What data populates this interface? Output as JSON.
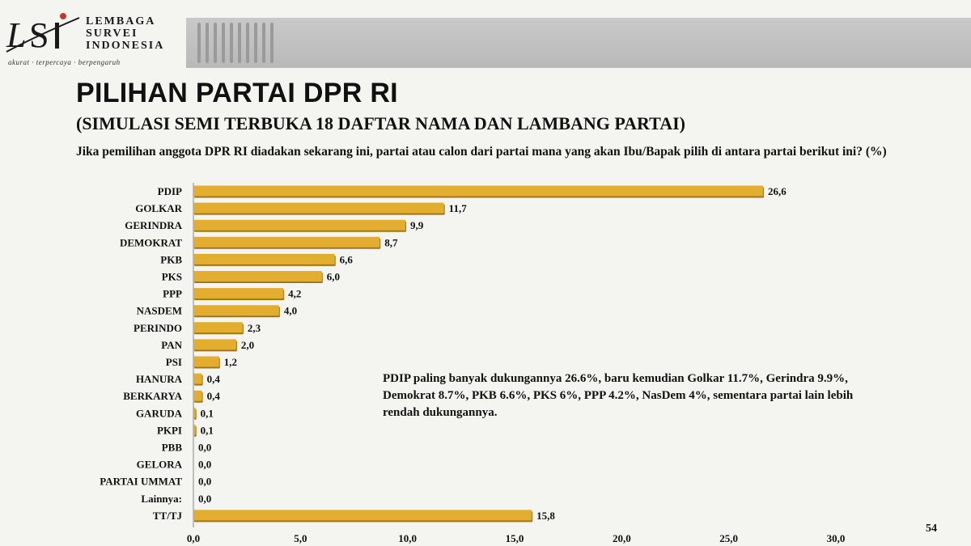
{
  "logo": {
    "name_lines": [
      "LEMBAGA",
      "SURVEI",
      "INDONESIA"
    ],
    "tagline": "akurat · terpercaya · berpengaruh"
  },
  "title": "PILIHAN PARTAI DPR RI",
  "subtitle": "(SIMULASI SEMI TERBUKA 18 DAFTAR NAMA DAN LAMBANG PARTAI)",
  "question": "Jika pemilihan anggota DPR RI diadakan sekarang ini, partai atau calon dari partai mana yang akan Ibu/Bapak pilih di antara partai berikut ini? (%)",
  "annotation": "PDIP paling banyak dukungannya 26.6%, baru kemudian Golkar 11.7%, Gerindra 9.9%, Demokrat 8.7%, PKB 6.6%, PKS 6%, PPP 4.2%, NasDem 4%, sementara partai lain lebih rendah dukungannya.",
  "page_number": "54",
  "colors": {
    "bar": "#e3ad2f",
    "bar_shadow": "#a37615",
    "header_band": "#bfbfbf",
    "logo_accent": "#c0392b"
  },
  "chart_data": {
    "type": "bar",
    "orientation": "horizontal",
    "categories": [
      "PDIP",
      "GOLKAR",
      "GERINDRA",
      "DEMOKRAT",
      "PKB",
      "PKS",
      "PPP",
      "NASDEM",
      "PERINDO",
      "PAN",
      "PSI",
      "HANURA",
      "BERKARYA",
      "GARUDA",
      "PKPI",
      "PBB",
      "GELORA",
      "PARTAI UMMAT",
      "Lainnya:",
      "TT/TJ"
    ],
    "values": [
      26.6,
      11.7,
      9.9,
      8.7,
      6.6,
      6.0,
      4.2,
      4.0,
      2.3,
      2.0,
      1.2,
      0.4,
      0.4,
      0.1,
      0.1,
      0.0,
      0.0,
      0.0,
      0.0,
      15.8
    ],
    "value_labels": [
      "26,6",
      "11,7",
      "9,9",
      "8,7",
      "6,6",
      "6,0",
      "4,2",
      "4,0",
      "2,3",
      "2,0",
      "1,2",
      "0,4",
      "0,4",
      "0,1",
      "0,1",
      "0,0",
      "0,0",
      "0,0",
      "0,0",
      "15,8"
    ],
    "xlim": [
      0,
      30
    ],
    "xticks": [
      0,
      5,
      10,
      15,
      20,
      25,
      30
    ],
    "xtick_labels": [
      "0,0",
      "5,0",
      "10,0",
      "15,0",
      "20,0",
      "25,0",
      "30,0"
    ],
    "grid": false,
    "legend": "none"
  }
}
